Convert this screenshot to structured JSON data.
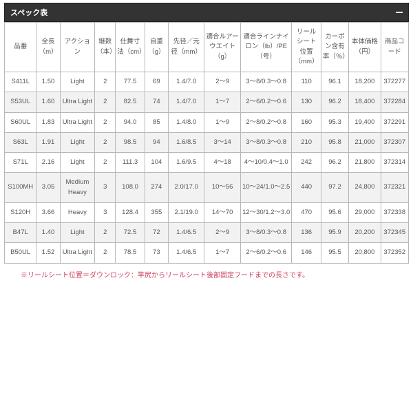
{
  "title": "スペック表",
  "columns": [
    "品番",
    "全長（m）",
    "アクション",
    "継数（本）",
    "仕舞寸法（cm）",
    "自重（g）",
    "先径／元径（mm）",
    "適合ルアーウエイト（g）",
    "適合ラインナイロン（lb）/PE（号）",
    "リールシート位置（mm）",
    "カーボン含有率（％）",
    "本体価格（円）",
    "商品コード"
  ],
  "rows": [
    [
      "S411L",
      "1.50",
      "Light",
      "2",
      "77.5",
      "69",
      "1.4/7.0",
      "2～9",
      "3～8/0.3～0.8",
      "110",
      "96.1",
      "18,200",
      "372277"
    ],
    [
      "S53UL",
      "1.60",
      "Ultra Light",
      "2",
      "82.5",
      "74",
      "1.4/7.0",
      "1～7",
      "2～6/0.2～0.6",
      "130",
      "96.2",
      "18,400",
      "372284"
    ],
    [
      "S60UL",
      "1.83",
      "Ultra Light",
      "2",
      "94.0",
      "85",
      "1.4/8.0",
      "1～9",
      "2～8/0.2～0.8",
      "160",
      "95.3",
      "19,400",
      "372291"
    ],
    [
      "S63L",
      "1.91",
      "Light",
      "2",
      "98.5",
      "94",
      "1.6/8.5",
      "3～14",
      "3～8/0.3～0.8",
      "210",
      "95.8",
      "21,000",
      "372307"
    ],
    [
      "S71L",
      "2.16",
      "Light",
      "2",
      "111.3",
      "104",
      "1.6/9.5",
      "4～18",
      "4～10/0.4～1.0",
      "242",
      "96.2",
      "21,800",
      "372314"
    ],
    [
      "S100MH",
      "3.05",
      "Medium Heavy",
      "3",
      "108.0",
      "274",
      "2.0/17.0",
      "10～56",
      "10～24/1.0～2.5",
      "440",
      "97.2",
      "24,800",
      "372321"
    ],
    [
      "S120H",
      "3.66",
      "Heavy",
      "3",
      "128.4",
      "355",
      "2.1/19.0",
      "14～70",
      "12～30/1.2～3.0",
      "470",
      "95.6",
      "29,000",
      "372338"
    ],
    [
      "B47L",
      "1.40",
      "Light",
      "2",
      "72.5",
      "72",
      "1.4/6.5",
      "2～9",
      "3～8/0.3～0.8",
      "136",
      "95.9",
      "20,200",
      "372345"
    ],
    [
      "B50UL",
      "1.52",
      "Ultra Light",
      "2",
      "78.5",
      "73",
      "1.4/6.5",
      "1～7",
      "2～6/0.2～0.6",
      "146",
      "95.5",
      "20,800",
      "372352"
    ]
  ],
  "note": "※リールシート位置＝ダウンロック：竿尻からリールシート後部固定フードまでの長さです。"
}
